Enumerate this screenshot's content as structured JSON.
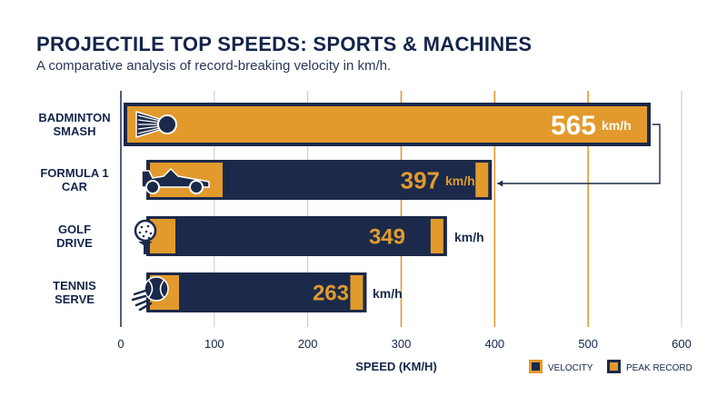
{
  "title": "PROJECTILE TOP SPEEDS: SPORTS & MACHINES",
  "subtitle": "A comparative analysis of record-breaking velocity in km/h.",
  "colors": {
    "navy": "#1b2a4a",
    "orange": "#e29a2d",
    "grid_active": "#e29a2d",
    "grid": "#c8ccd4"
  },
  "chart_data": {
    "type": "bar",
    "orientation": "horizontal",
    "xlabel": "SPEED (KM/H)",
    "xlim": [
      0,
      600
    ],
    "x_ticks": [
      "0",
      "100",
      "200",
      "300",
      "400",
      "500",
      "600"
    ],
    "unit": "km/h",
    "categories": [
      {
        "label_lines": [
          "BADMINTON",
          "SMASH"
        ],
        "icon": "shuttlecock-icon"
      },
      {
        "label_lines": [
          "FORMULA 1",
          "CAR"
        ],
        "icon": "f1-car-icon"
      },
      {
        "label_lines": [
          "GOLF",
          "DRIVE"
        ],
        "icon": "golf-ball-icon"
      },
      {
        "label_lines": [
          "TENNIS",
          "SERVE"
        ],
        "icon": "tennis-ball-icon"
      }
    ],
    "values": [
      565,
      397,
      349,
      263
    ],
    "value_labels": [
      "565",
      "397",
      "349",
      "263"
    ],
    "legend": [
      "VELOCITY",
      "PEAK RECORD"
    ],
    "legend_position": "bottom-right",
    "grid": true
  }
}
